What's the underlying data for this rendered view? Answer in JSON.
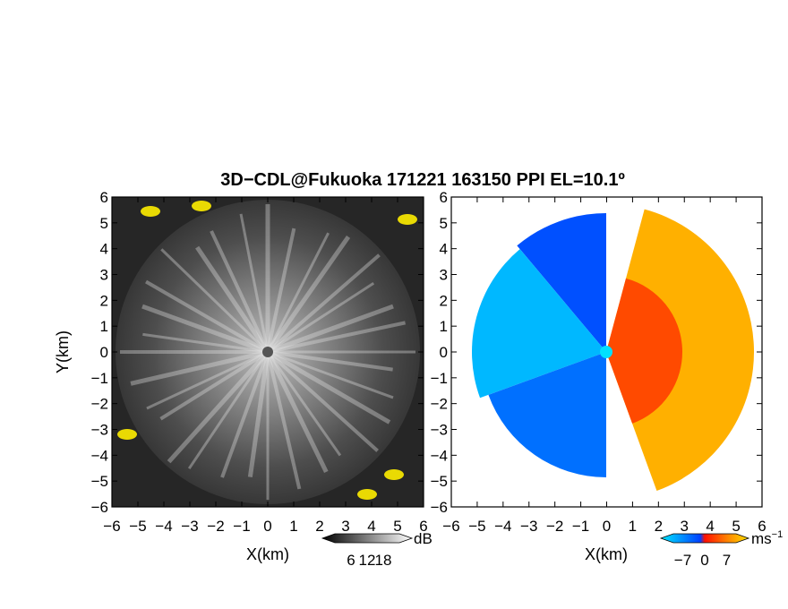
{
  "title": "3D−CDL@Fukuoka 171221 163150 PPI EL=10.1º",
  "chart_data": [
    {
      "type": "heatmap",
      "field": "reflectivity",
      "xlabel": "X(km)",
      "ylabel": "Y(km)",
      "xlim": [
        -6,
        6
      ],
      "ylim": [
        -6,
        6
      ],
      "xticks": [
        "−6",
        "−5",
        "−4",
        "−3",
        "−2",
        "−1",
        "0",
        "1",
        "2",
        "3",
        "4",
        "5",
        "6"
      ],
      "yticks": [
        "6",
        "5",
        "4",
        "3",
        "2",
        "1",
        "0",
        "−1",
        "−2",
        "−3",
        "−4",
        "−5",
        "−6"
      ],
      "colorbar": {
        "unit": "dB",
        "ticks": [
          "6",
          "12",
          "18"
        ],
        "range": [
          0,
          24
        ]
      },
      "radar_center": [
        0,
        0
      ]
    },
    {
      "type": "heatmap",
      "field": "doppler_velocity",
      "xlabel": "X(km)",
      "ylabel": "",
      "xlim": [
        -6,
        6
      ],
      "ylim": [
        -6,
        6
      ],
      "xticks": [
        "−6",
        "−5",
        "−4",
        "−3",
        "−2",
        "−1",
        "0",
        "1",
        "2",
        "3",
        "4",
        "5",
        "6"
      ],
      "yticks": [
        "6",
        "5",
        "4",
        "3",
        "2",
        "1",
        "0",
        "−1",
        "−2",
        "−3",
        "−4",
        "−5",
        "−6"
      ],
      "colorbar": {
        "unit": "ms",
        "unit_exp": "−1",
        "ticks": [
          "−7",
          "0",
          "7"
        ],
        "range": [
          -10,
          10
        ]
      },
      "colors": [
        "#00e0ff",
        "#0050ff",
        "#ff2000",
        "#ffd000"
      ]
    }
  ]
}
